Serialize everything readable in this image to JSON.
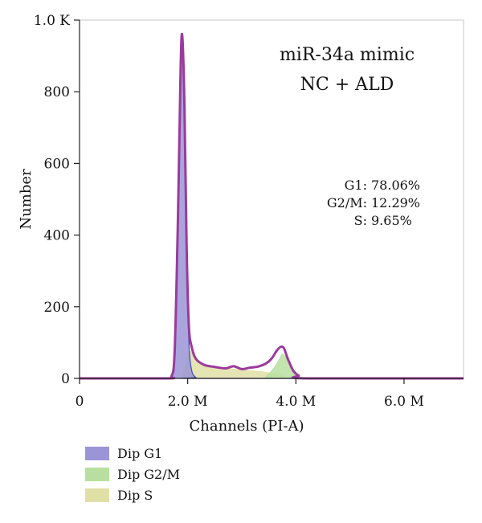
{
  "chart_data": {
    "type": "area",
    "title_lines": [
      "miR-34a mimic",
      "NC + ALD"
    ],
    "xlabel": "Channels (PI-A)",
    "ylabel": "Number",
    "xlim": [
      0,
      7.1
    ],
    "ylim": [
      0,
      1000
    ],
    "x_unit": "M",
    "x_ticks": [
      {
        "value": 0,
        "label": "0"
      },
      {
        "value": 2,
        "label": "2.0 M"
      },
      {
        "value": 4,
        "label": "4.0 M"
      },
      {
        "value": 6,
        "label": "6.0 M"
      }
    ],
    "y_ticks": [
      {
        "value": 0,
        "label": "0"
      },
      {
        "value": 200,
        "label": "200"
      },
      {
        "value": 400,
        "label": "400"
      },
      {
        "value": 600,
        "label": "600"
      },
      {
        "value": 800,
        "label": "800"
      },
      {
        "value": 1000,
        "label": "1.0 K"
      }
    ],
    "stats": [
      {
        "label": "G1:",
        "value": "78.06%"
      },
      {
        "label": "G2/M:",
        "value": "12.29%"
      },
      {
        "label": "S:",
        "value": "9.65%"
      }
    ],
    "series": [
      {
        "name": "Dip G1",
        "color": "#9a95d6",
        "points": [
          [
            0,
            0
          ],
          [
            1.6,
            0
          ],
          [
            1.7,
            5
          ],
          [
            1.76,
            80
          ],
          [
            1.82,
            450
          ],
          [
            1.87,
            870
          ],
          [
            1.9,
            950
          ],
          [
            1.94,
            760
          ],
          [
            1.98,
            370
          ],
          [
            2.02,
            110
          ],
          [
            2.07,
            25
          ],
          [
            2.15,
            3
          ],
          [
            2.25,
            0
          ],
          [
            7.1,
            0
          ]
        ]
      },
      {
        "name": "Dip G2/M",
        "color": "#b9dfa0",
        "points": [
          [
            0,
            0
          ],
          [
            3.3,
            0
          ],
          [
            3.45,
            6
          ],
          [
            3.6,
            30
          ],
          [
            3.7,
            55
          ],
          [
            3.76,
            68
          ],
          [
            3.84,
            50
          ],
          [
            3.95,
            18
          ],
          [
            4.05,
            4
          ],
          [
            4.15,
            0
          ],
          [
            7.1,
            0
          ]
        ]
      },
      {
        "name": "Dip S",
        "color": "#e0e0a6",
        "points": [
          [
            0,
            0
          ],
          [
            1.75,
            0
          ],
          [
            1.9,
            15
          ],
          [
            2.0,
            60
          ],
          [
            2.05,
            75
          ],
          [
            2.15,
            50
          ],
          [
            2.35,
            32
          ],
          [
            2.7,
            28
          ],
          [
            3.1,
            22
          ],
          [
            3.4,
            18
          ],
          [
            3.6,
            12
          ],
          [
            3.8,
            5
          ],
          [
            3.9,
            0
          ],
          [
            7.1,
            0
          ]
        ]
      }
    ],
    "total_curve": {
      "color": "#9b3a9c",
      "points": [
        [
          0,
          0
        ],
        [
          1.6,
          0
        ],
        [
          1.7,
          5
        ],
        [
          1.76,
          80
        ],
        [
          1.82,
          450
        ],
        [
          1.87,
          870
        ],
        [
          1.9,
          955
        ],
        [
          1.94,
          760
        ],
        [
          1.98,
          370
        ],
        [
          2.02,
          150
        ],
        [
          2.07,
          90
        ],
        [
          2.15,
          55
        ],
        [
          2.3,
          38
        ],
        [
          2.5,
          32
        ],
        [
          2.7,
          28
        ],
        [
          2.85,
          34
        ],
        [
          3.0,
          26
        ],
        [
          3.15,
          30
        ],
        [
          3.3,
          33
        ],
        [
          3.45,
          42
        ],
        [
          3.55,
          55
        ],
        [
          3.65,
          78
        ],
        [
          3.72,
          88
        ],
        [
          3.78,
          84
        ],
        [
          3.85,
          55
        ],
        [
          3.95,
          22
        ],
        [
          4.05,
          8
        ],
        [
          4.2,
          0
        ],
        [
          7.1,
          0
        ]
      ]
    },
    "legend_position": "bottom-left",
    "grid": false
  }
}
